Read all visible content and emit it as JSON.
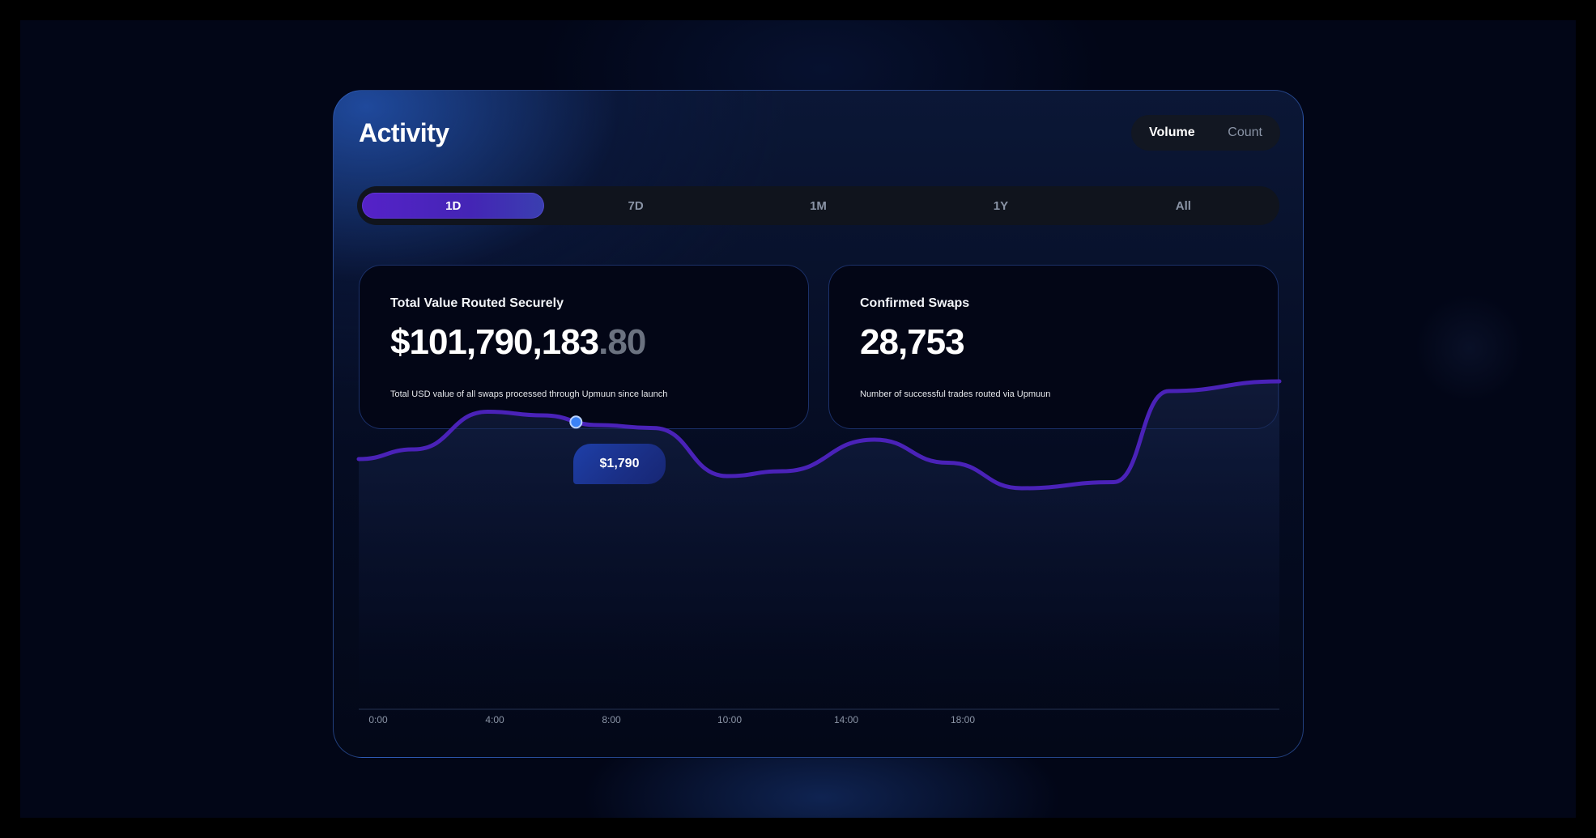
{
  "header": {
    "title": "Activity"
  },
  "metric_toggle": {
    "options": [
      "Volume",
      "Count"
    ],
    "selected": "Volume"
  },
  "time_range": {
    "tabs": [
      "1D",
      "7D",
      "1M",
      "1Y",
      "All"
    ],
    "selected": "1D"
  },
  "stats": [
    {
      "label": "Total Value Routed Securely",
      "value_main": "$101,790,183",
      "value_frac": ".80",
      "description": "Total USD value of all swaps processed through Upmuun since launch"
    },
    {
      "label": "Confirmed Swaps",
      "value_main": "28,753",
      "value_frac": "",
      "description": "Number of successful trades routed via Upmuun"
    }
  ],
  "tooltip": {
    "value": "$1,790"
  },
  "colors": {
    "accent": "#4F23C4",
    "line": "#4A22B8",
    "marker": "#3B82F6",
    "tooltip": "#1E3FA8"
  },
  "chart_data": {
    "type": "area",
    "x_tick_labels": [
      "0:00",
      "4:00",
      "8:00",
      "10:00",
      "14:00",
      "18:00"
    ],
    "x": [
      0,
      1.5,
      3.5,
      5,
      6.5,
      8,
      10,
      11.5,
      14,
      16,
      18,
      20.5,
      22,
      25
    ],
    "values": [
      1600,
      1640,
      1795,
      1780,
      1740,
      1728,
      1530,
      1550,
      1680,
      1585,
      1480,
      1505,
      1880,
      1920
    ],
    "highlight": {
      "x": 5.9,
      "label": "$1,790"
    },
    "xlim": [
      0,
      25
    ],
    "ylim": [
      1000,
      2000
    ],
    "grid": false,
    "legend": "none"
  }
}
